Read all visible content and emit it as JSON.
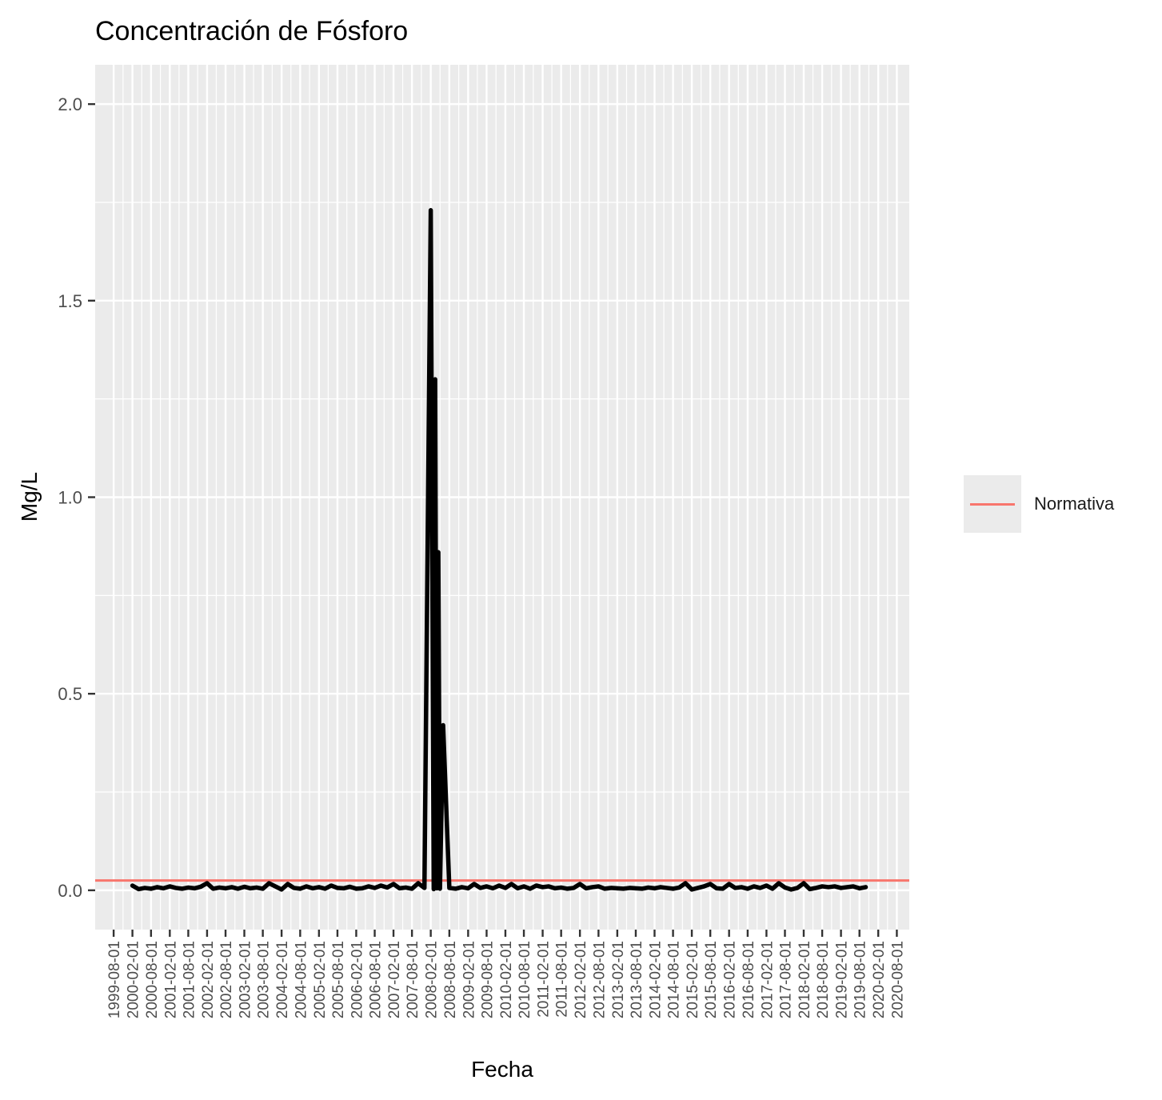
{
  "chart_data": {
    "type": "line",
    "title": "Concentración de Fósforo",
    "xlabel": "Fecha",
    "ylabel": "Mg/L",
    "ylim": [
      -0.1,
      2.1
    ],
    "y_ticks": [
      0.0,
      0.5,
      1.0,
      1.5,
      2.0
    ],
    "y_tick_labels": [
      "0.0",
      "0.5",
      "1.0",
      "1.5",
      "2.0"
    ],
    "x_tick_labels": [
      "1999-08-01",
      "2000-02-01",
      "2000-08-01",
      "2001-02-01",
      "2001-08-01",
      "2002-02-01",
      "2002-08-01",
      "2003-02-01",
      "2003-08-01",
      "2004-02-01",
      "2004-08-01",
      "2005-02-01",
      "2005-08-01",
      "2006-02-01",
      "2006-08-01",
      "2007-02-01",
      "2007-08-01",
      "2008-02-01",
      "2008-08-01",
      "2009-02-01",
      "2009-08-01",
      "2010-02-01",
      "2010-08-01",
      "2011-02-01",
      "2011-08-01",
      "2012-02-01",
      "2012-08-01",
      "2013-02-01",
      "2013-08-01",
      "2014-02-01",
      "2014-08-01",
      "2015-02-01",
      "2015-08-01",
      "2016-02-01",
      "2016-08-01",
      "2017-02-01",
      "2017-08-01",
      "2018-02-01",
      "2018-08-01",
      "2019-02-01",
      "2019-08-01",
      "2020-02-01",
      "2020-08-01"
    ],
    "x_range": [
      "1999-02-01",
      "2020-12-01"
    ],
    "grid": true,
    "legend_position": "right",
    "series": [
      {
        "name": "",
        "color": "#000000",
        "x": [
          "2000-02-01",
          "2000-04-01",
          "2000-06-01",
          "2000-08-01",
          "2000-10-01",
          "2000-12-01",
          "2001-02-01",
          "2001-04-01",
          "2001-06-01",
          "2001-08-01",
          "2001-10-01",
          "2001-12-01",
          "2002-02-01",
          "2002-04-01",
          "2002-06-01",
          "2002-08-01",
          "2002-10-01",
          "2002-12-01",
          "2003-02-01",
          "2003-04-01",
          "2003-06-01",
          "2003-08-01",
          "2003-10-01",
          "2003-12-01",
          "2004-02-01",
          "2004-04-01",
          "2004-06-01",
          "2004-08-01",
          "2004-10-01",
          "2004-12-01",
          "2005-02-01",
          "2005-04-01",
          "2005-06-01",
          "2005-08-01",
          "2005-10-01",
          "2005-12-01",
          "2006-02-01",
          "2006-04-01",
          "2006-06-01",
          "2006-08-01",
          "2006-10-01",
          "2006-12-01",
          "2007-02-01",
          "2007-04-01",
          "2007-06-01",
          "2007-08-01",
          "2007-10-01",
          "2007-12-01",
          "2008-02-01",
          "2008-03-01",
          "2008-03-15",
          "2008-04-01",
          "2008-04-15",
          "2008-05-01",
          "2008-06-01",
          "2008-08-01",
          "2008-10-01",
          "2008-12-01",
          "2009-02-01",
          "2009-04-01",
          "2009-06-01",
          "2009-08-01",
          "2009-10-01",
          "2009-12-01",
          "2010-02-01",
          "2010-04-01",
          "2010-06-01",
          "2010-08-01",
          "2010-10-01",
          "2010-12-01",
          "2011-02-01",
          "2011-04-01",
          "2011-06-01",
          "2011-08-01",
          "2011-10-01",
          "2011-12-01",
          "2012-02-01",
          "2012-04-01",
          "2012-06-01",
          "2012-08-01",
          "2012-10-01",
          "2012-12-01",
          "2013-02-01",
          "2013-04-01",
          "2013-06-01",
          "2013-08-01",
          "2013-10-01",
          "2013-12-01",
          "2014-02-01",
          "2014-04-01",
          "2014-06-01",
          "2014-08-01",
          "2014-10-01",
          "2014-12-01",
          "2015-02-01",
          "2015-04-01",
          "2015-06-01",
          "2015-08-01",
          "2015-10-01",
          "2015-12-01",
          "2016-02-01",
          "2016-04-01",
          "2016-06-01",
          "2016-08-01",
          "2016-10-01",
          "2016-12-01",
          "2017-02-01",
          "2017-04-01",
          "2017-06-01",
          "2017-08-01",
          "2017-10-01",
          "2017-12-01",
          "2018-02-01",
          "2018-04-01",
          "2018-06-01",
          "2018-08-01",
          "2018-10-01",
          "2018-12-01",
          "2019-02-01",
          "2019-04-01",
          "2019-06-01",
          "2019-08-01",
          "2019-10-01"
        ],
        "y": [
          0.012,
          0.003,
          0.006,
          0.004,
          0.008,
          0.005,
          0.01,
          0.006,
          0.004,
          0.007,
          0.005,
          0.009,
          0.018,
          0.004,
          0.007,
          0.005,
          0.008,
          0.004,
          0.009,
          0.005,
          0.007,
          0.004,
          0.018,
          0.01,
          0.002,
          0.016,
          0.006,
          0.004,
          0.01,
          0.005,
          0.008,
          0.004,
          0.012,
          0.006,
          0.005,
          0.009,
          0.004,
          0.005,
          0.01,
          0.006,
          0.012,
          0.007,
          0.016,
          0.005,
          0.007,
          0.004,
          0.018,
          0.006,
          1.73,
          0.003,
          1.3,
          0.005,
          0.86,
          0.004,
          0.42,
          0.006,
          0.004,
          0.008,
          0.005,
          0.016,
          0.006,
          0.01,
          0.005,
          0.012,
          0.006,
          0.016,
          0.005,
          0.01,
          0.004,
          0.012,
          0.008,
          0.01,
          0.005,
          0.007,
          0.004,
          0.006,
          0.016,
          0.005,
          0.008,
          0.01,
          0.004,
          0.006,
          0.005,
          0.004,
          0.006,
          0.005,
          0.004,
          0.007,
          0.005,
          0.008,
          0.006,
          0.004,
          0.007,
          0.018,
          0.002,
          0.006,
          0.01,
          0.016,
          0.005,
          0.004,
          0.016,
          0.006,
          0.008,
          0.004,
          0.01,
          0.006,
          0.012,
          0.004,
          0.018,
          0.007,
          0.002,
          0.006,
          0.018,
          0.003,
          0.006,
          0.01,
          0.008,
          0.01,
          0.006,
          0.008,
          0.01,
          0.005,
          0.008
        ]
      },
      {
        "name": "Normativa",
        "color": "#f8766d",
        "y_constant": 0.025
      }
    ]
  }
}
